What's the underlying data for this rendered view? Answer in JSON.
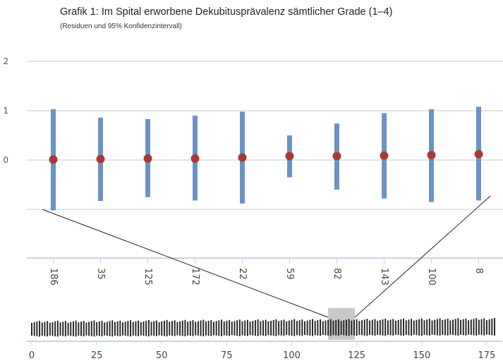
{
  "chart_data": {
    "type": "scatter",
    "title": "Grafik 1: Im Spital erworbene Dekubitusprävalenz sämtlicher Grade (1–4)",
    "subtitle": "(Residuen und 95% Konfidenzintervall)",
    "y_tick_labels": [
      "2",
      "1",
      "0"
    ],
    "ylim": [
      -1,
      2
    ],
    "grid": true,
    "categories": [
      "186",
      "35",
      "125",
      "172",
      "22",
      "59",
      "82",
      "143",
      "100",
      "8"
    ],
    "residuals": [
      0.01,
      0.02,
      0.03,
      0.03,
      0.05,
      0.08,
      0.08,
      0.09,
      0.1,
      0.12
    ],
    "ci_lower": [
      -1.02,
      -0.83,
      -0.75,
      -0.82,
      -0.88,
      -0.35,
      -0.6,
      -0.78,
      -0.85,
      -0.82
    ],
    "ci_upper": [
      1.03,
      0.86,
      0.83,
      0.9,
      0.98,
      0.5,
      0.74,
      0.95,
      1.03,
      1.08
    ],
    "colors": {
      "point": "#a83a36",
      "interval": "#6b93c4",
      "grid": "#dcdcdc",
      "axis": "#c6d4e6",
      "navigator_window": "#c8c8c8"
    },
    "navigator": {
      "x_ticks": [
        "0",
        "25",
        "50",
        "75",
        "100",
        "125",
        "150",
        "175"
      ],
      "xlim": [
        0,
        178
      ],
      "selected_range": [
        114,
        124
      ]
    }
  }
}
